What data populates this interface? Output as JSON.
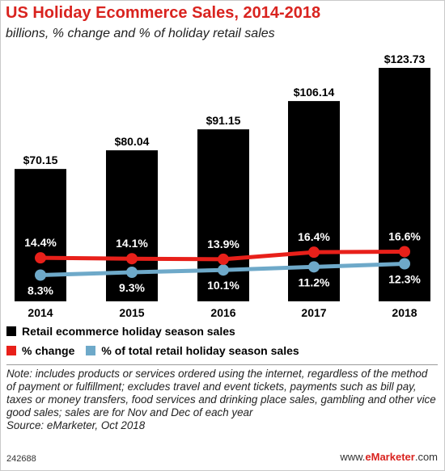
{
  "header": {
    "title": "US Holiday Ecommerce Sales, 2014-2018",
    "subtitle": "billions, % change and % of holiday retail sales"
  },
  "chart_data": {
    "type": "bar",
    "categories": [
      "2014",
      "2015",
      "2016",
      "2017",
      "2018"
    ],
    "series": [
      {
        "name": "Retail ecommerce holiday season sales",
        "type": "bar",
        "color": "#000000",
        "values": [
          70.15,
          80.04,
          91.15,
          106.14,
          123.73
        ],
        "labels": [
          "$70.15",
          "$80.04",
          "$91.15",
          "$106.14",
          "$123.73"
        ]
      },
      {
        "name": "% change",
        "type": "line",
        "color": "#e8201a",
        "values": [
          14.4,
          14.1,
          13.9,
          16.4,
          16.6
        ],
        "labels": [
          "14.4%",
          "14.1%",
          "13.9%",
          "16.4%",
          "16.6%"
        ]
      },
      {
        "name": "% of total retail holiday season sales",
        "type": "line",
        "color": "#6ea9c9",
        "values": [
          8.3,
          9.3,
          10.1,
          11.2,
          12.3
        ],
        "labels": [
          "8.3%",
          "9.3%",
          "10.1%",
          "11.2%",
          "12.3%"
        ]
      }
    ],
    "legend_placement": "bottom",
    "grid": false
  },
  "legend": {
    "sales": "Retail ecommerce holiday season sales",
    "change": "% change",
    "share": "% of total retail holiday season sales"
  },
  "footer": {
    "note": "Note: includes products or services ordered using the internet, regardless of the method of payment or fulfillment; excludes travel and event tickets, payments such as bill pay, taxes or money transfers, food services and drinking place sales, gambling and other vice good sales; sales are for Nov and Dec of each year",
    "source": "Source: eMarketer, Oct 2018",
    "chart_id": "242688",
    "brand_prefix": "www.",
    "brand_name": "eMarketer",
    "brand_suffix": ".com"
  }
}
